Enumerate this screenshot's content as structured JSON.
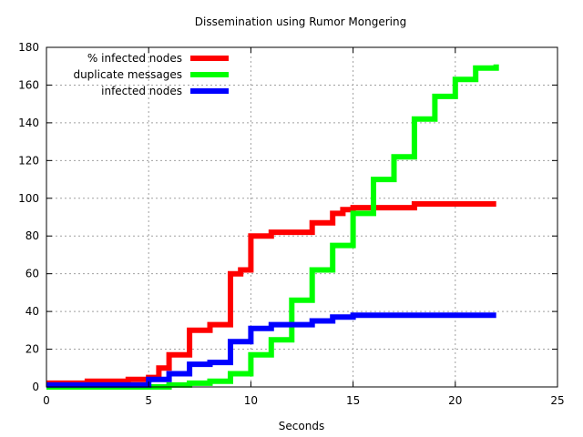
{
  "chart_data": {
    "type": "line",
    "title": "Dissemination using Rumor Mongering",
    "xlabel": "Seconds",
    "ylabel": "",
    "xlim": [
      0,
      25
    ],
    "ylim": [
      0,
      180
    ],
    "xticks": [
      0,
      5,
      10,
      15,
      20,
      25
    ],
    "yticks": [
      0,
      20,
      40,
      60,
      80,
      100,
      120,
      140,
      160,
      180
    ],
    "grid": true,
    "legend_position": "top-left",
    "series": [
      {
        "name": "% infected nodes",
        "color": "#ff0000",
        "x": [
          0,
          2,
          4,
          5,
          5.5,
          6,
          7,
          8,
          9,
          9.5,
          10,
          11,
          12,
          13,
          13.5,
          14,
          14.5,
          15,
          16,
          18,
          22
        ],
        "y": [
          2,
          3,
          4,
          5,
          10,
          17,
          30,
          33,
          60,
          62,
          80,
          82,
          82,
          87,
          87,
          92,
          94,
          95,
          95,
          97,
          97
        ]
      },
      {
        "name": "duplicate messages",
        "color": "#00ff00",
        "x": [
          0,
          5,
          6,
          7,
          8,
          9,
          10,
          11,
          12,
          13,
          14,
          15,
          16,
          17,
          18,
          19,
          20,
          21,
          22
        ],
        "y": [
          0,
          0,
          1,
          2,
          3,
          7,
          17,
          25,
          46,
          62,
          75,
          92,
          110,
          122,
          142,
          154,
          163,
          169,
          171
        ]
      },
      {
        "name": "infected nodes",
        "color": "#0000ff",
        "x": [
          0,
          5,
          6,
          7,
          8,
          9,
          10,
          11,
          12,
          13,
          14,
          15,
          18,
          22
        ],
        "y": [
          1,
          4,
          7,
          12,
          13,
          24,
          31,
          33,
          33,
          35,
          37,
          38,
          38,
          38
        ]
      }
    ]
  }
}
